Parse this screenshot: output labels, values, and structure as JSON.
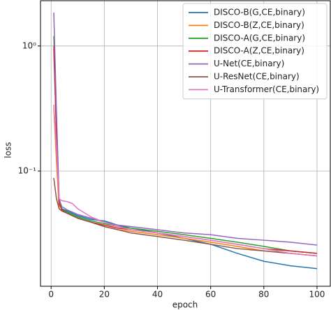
{
  "chart_data": {
    "type": "line",
    "x_label": "epoch",
    "y_label": "loss",
    "x": [
      1,
      2,
      3,
      4,
      6,
      8,
      10,
      15,
      20,
      25,
      30,
      40,
      50,
      60,
      70,
      80,
      90,
      100
    ],
    "series": [
      {
        "name": "DISCO-B(G,CE,binary)",
        "color": "#1f77b4",
        "values": [
          0.95,
          0.2,
          0.055,
          0.05,
          0.048,
          0.046,
          0.044,
          0.041,
          0.04,
          0.037,
          0.035,
          0.032,
          0.029,
          0.026,
          0.022,
          0.019,
          0.0175,
          0.0166
        ]
      },
      {
        "name": "DISCO-B(Z,CE,binary)",
        "color": "#ff7f0e",
        "values": [
          0.32,
          0.12,
          0.05,
          0.048,
          0.046,
          0.044,
          0.042,
          0.039,
          0.036,
          0.034,
          0.033,
          0.031,
          0.029,
          0.027,
          0.025,
          0.023,
          0.022,
          0.021
        ]
      },
      {
        "name": "DISCO-A(G,CE,binary)",
        "color": "#2ca02c",
        "values": [
          1.2,
          0.25,
          0.06,
          0.05,
          0.047,
          0.045,
          0.043,
          0.04,
          0.038,
          0.036,
          0.035,
          0.033,
          0.031,
          0.029,
          0.027,
          0.025,
          0.023,
          0.022
        ]
      },
      {
        "name": "DISCO-A(Z,CE,binary)",
        "color": "#d62728",
        "values": [
          1.0,
          0.2,
          0.055,
          0.049,
          0.046,
          0.044,
          0.042,
          0.039,
          0.037,
          0.035,
          0.034,
          0.032,
          0.03,
          0.028,
          0.026,
          0.024,
          0.023,
          0.022
        ]
      },
      {
        "name": "U-Net(CE,binary)",
        "color": "#9467bd",
        "values": [
          1.85,
          0.3,
          0.06,
          0.052,
          0.049,
          0.047,
          0.045,
          0.042,
          0.039,
          0.037,
          0.036,
          0.034,
          0.032,
          0.031,
          0.029,
          0.028,
          0.027,
          0.0256
        ]
      },
      {
        "name": "U-ResNet(CE,binary)",
        "color": "#8c564b",
        "values": [
          0.088,
          0.06,
          0.05,
          0.048,
          0.046,
          0.044,
          0.042,
          0.039,
          0.036,
          0.034,
          0.032,
          0.03,
          0.028,
          0.026,
          0.024,
          0.023,
          0.022,
          0.021
        ]
      },
      {
        "name": "U-Transformer(CE,binary)",
        "color": "#e377c2",
        "values": [
          0.34,
          0.15,
          0.06,
          0.058,
          0.057,
          0.055,
          0.05,
          0.043,
          0.039,
          0.036,
          0.034,
          0.032,
          0.03,
          0.028,
          0.026,
          0.024,
          0.022,
          0.021
        ]
      }
    ],
    "xlim": [
      -4,
      105
    ],
    "xticks": [
      0,
      20,
      40,
      60,
      80,
      100
    ],
    "ylim": [
      0.012,
      2.3
    ],
    "ylog": true,
    "yticks": [
      {
        "value": 1,
        "label": "10⁰"
      },
      {
        "value": 0.1,
        "label": "10⁻¹"
      }
    ],
    "grid": true,
    "legend": "upper-right"
  }
}
